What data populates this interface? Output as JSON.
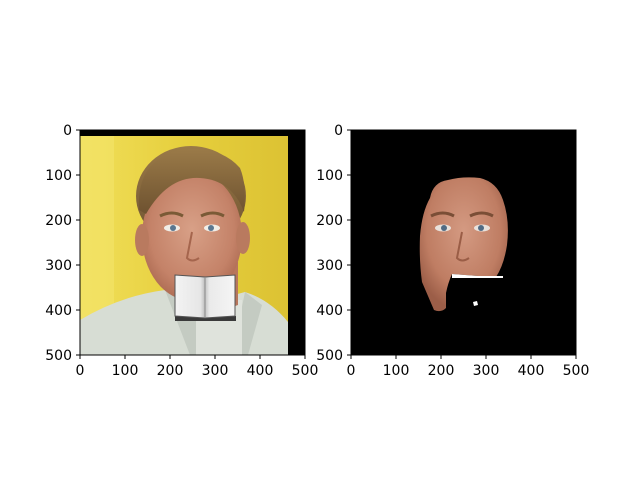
{
  "chart_data": [
    {
      "type": "image",
      "content": "portrait photo of a blond man in a light jacket on a yellow background, with an open book pasted over the mouth and chin",
      "xlim": [
        0,
        500
      ],
      "ylim": [
        500,
        0
      ],
      "xticks": [
        0,
        100,
        200,
        300,
        400,
        500
      ],
      "yticks": [
        0,
        100,
        200,
        300,
        400,
        500
      ],
      "xtick_labels": [
        "0",
        "100",
        "200",
        "300",
        "400",
        "500"
      ],
      "ytick_labels": [
        "0",
        "100",
        "200",
        "300",
        "400",
        "500"
      ],
      "occluder": {
        "name": "book",
        "x_range": [
          212,
          340
        ],
        "y_range": [
          323,
          420
        ]
      },
      "colors": {
        "background": "#e8d447",
        "jacket": "#d7ddd4",
        "skin": "#c98c70",
        "hair": "#8a6a3c",
        "border": "#000000"
      }
    },
    {
      "type": "image",
      "content": "segmentation mask: skin region of the face shown in color, everything else black; occluded lower-face area white",
      "xlim": [
        0,
        500
      ],
      "ylim": [
        500,
        0
      ],
      "xticks": [
        0,
        100,
        200,
        300,
        400,
        500
      ],
      "yticks": [
        0,
        100,
        200,
        300,
        400,
        500
      ],
      "xtick_labels": [
        "0",
        "100",
        "200",
        "300",
        "400",
        "500"
      ],
      "ytick_labels": [
        "0",
        "100",
        "200",
        "300",
        "400",
        "500"
      ],
      "colors": {
        "background": "#000000",
        "skin": "#c48a72",
        "occluded": "#ffffff"
      }
    }
  ]
}
